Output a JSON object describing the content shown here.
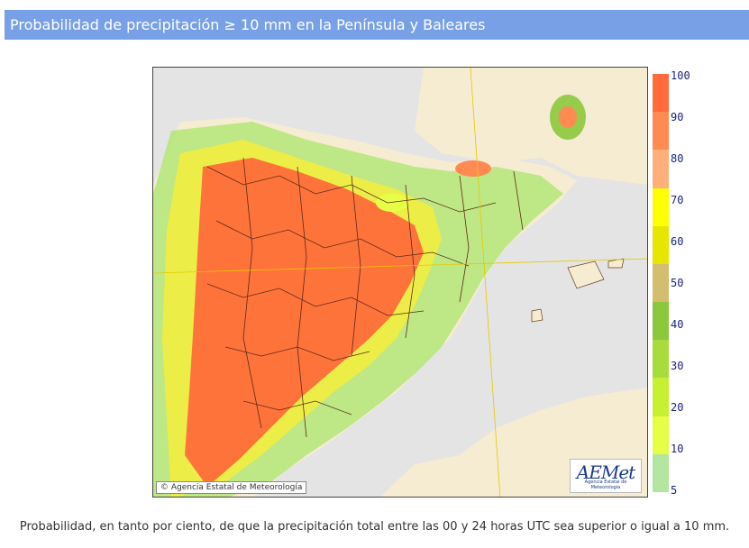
{
  "header": {
    "title": "Probabilidad de precipitación ≥ 10 mm en la Península y Baleares"
  },
  "map": {
    "copyright": "Agencia Estatal de Meteorología",
    "logo": {
      "name": "AEMet",
      "subtitle": "Agencia Estatal de Meteorología"
    }
  },
  "legend": {
    "labels": [
      "100",
      "90",
      "80",
      "70",
      "60",
      "50",
      "40",
      "30",
      "20",
      "10",
      "5"
    ],
    "colors": [
      "#ff6b3a",
      "#ff8a52",
      "#ffb07a",
      "#ffff00",
      "#e6e600",
      "#d2be6e",
      "#8cc83c",
      "#a8dc3c",
      "#c8f032",
      "#e6ff46",
      "#b4e6a0"
    ]
  },
  "footer": {
    "caption": "Probabilidad, en tanto por ciento, de que la precipitación total entre las 00 y 24 horas UTC sea superior o igual a 10 mm."
  }
}
